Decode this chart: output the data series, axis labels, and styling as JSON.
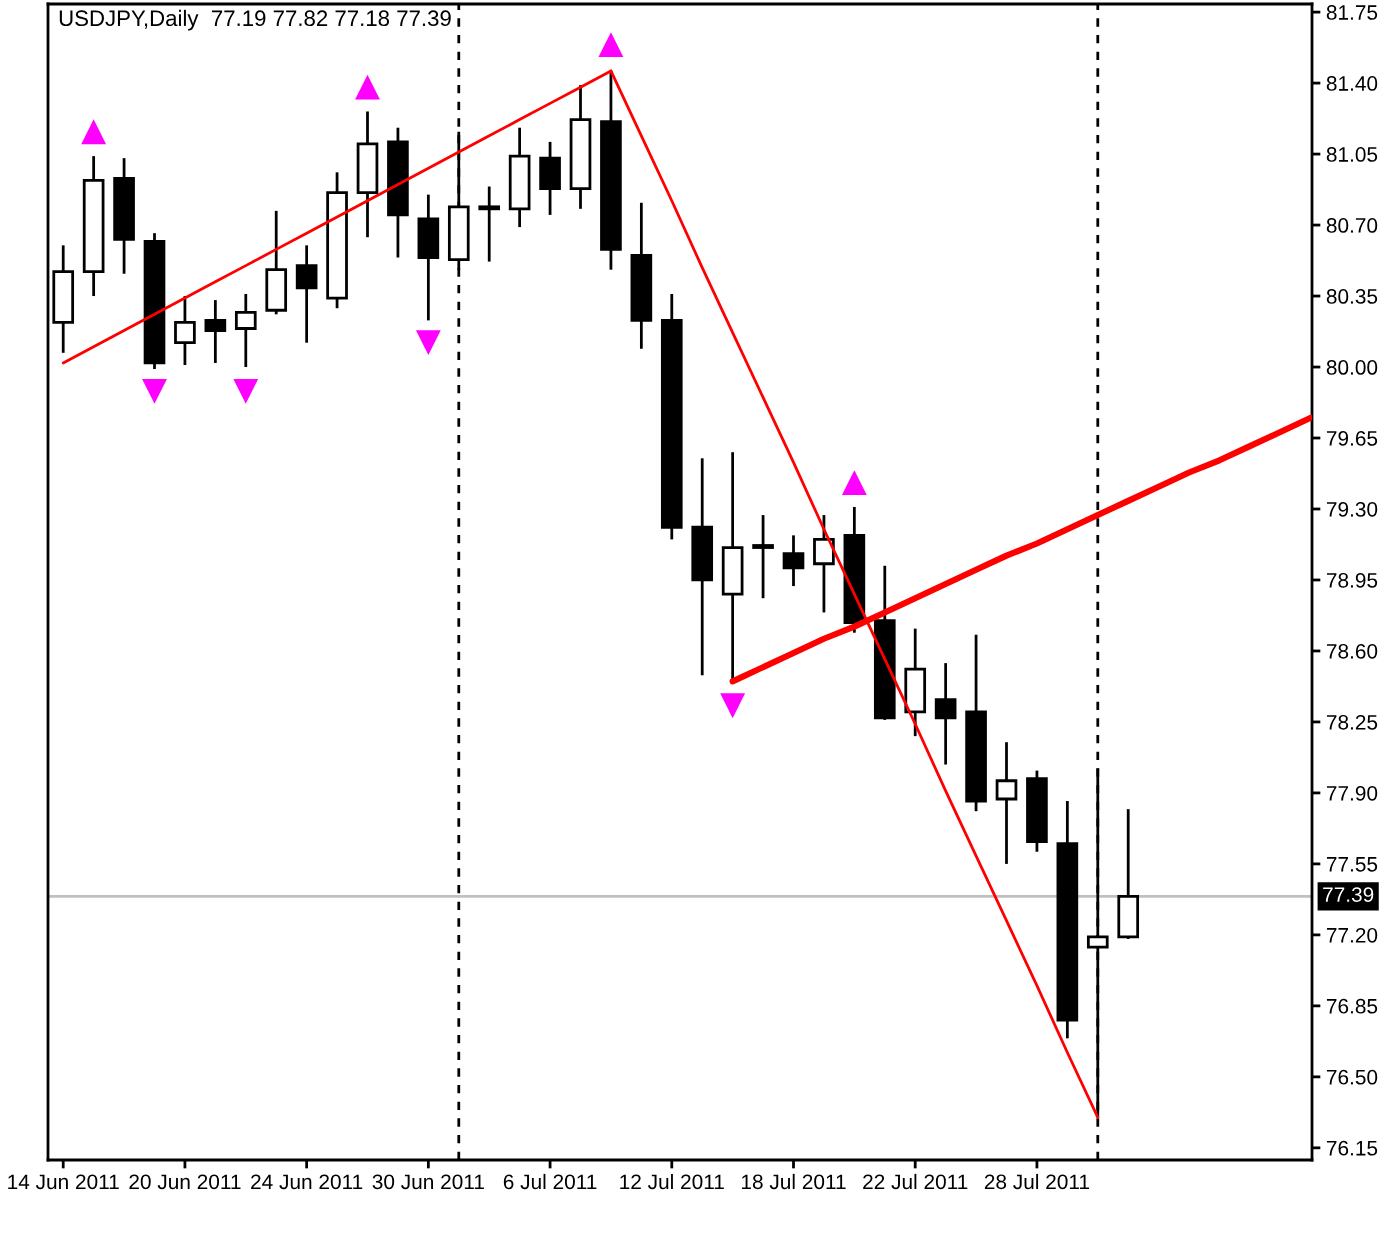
{
  "chart_data": {
    "type": "candlestick",
    "title": "USDJPY,Daily  77.19 77.82 77.18 77.39",
    "categories": [
      "14 Jun 2011",
      null,
      null,
      null,
      "20 Jun 2011",
      null,
      null,
      null,
      "24 Jun 2011",
      null,
      null,
      null,
      "30 Jun 2011",
      null,
      null,
      null,
      "6 Jul 2011",
      null,
      null,
      null,
      "12 Jul 2011",
      null,
      null,
      null,
      "18 Jul 2011",
      null,
      null,
      null,
      "22 Jul 2011",
      null,
      null,
      null,
      "28 Jul 2011",
      null,
      null,
      null,
      null,
      null,
      null,
      null,
      null,
      null
    ],
    "ohlc": [
      [
        80.22,
        80.6,
        80.07,
        80.47
      ],
      [
        80.47,
        81.04,
        80.35,
        80.92
      ],
      [
        80.93,
        81.03,
        80.46,
        80.63
      ],
      [
        80.62,
        80.66,
        79.99,
        80.02
      ],
      [
        80.12,
        80.35,
        80.01,
        80.22
      ],
      [
        80.23,
        80.33,
        80.02,
        80.18
      ],
      [
        80.19,
        80.36,
        80.0,
        80.27
      ],
      [
        80.28,
        80.77,
        80.26,
        80.48
      ],
      [
        80.5,
        80.6,
        80.12,
        80.39
      ],
      [
        80.34,
        80.96,
        80.29,
        80.86
      ],
      [
        80.86,
        81.26,
        80.64,
        81.1
      ],
      [
        81.11,
        81.18,
        80.54,
        80.75
      ],
      [
        80.73,
        80.85,
        80.23,
        80.54
      ],
      [
        80.53,
        81.16,
        80.48,
        80.79
      ],
      [
        80.79,
        80.89,
        80.52,
        80.78
      ],
      [
        80.78,
        81.18,
        80.69,
        81.04
      ],
      [
        81.03,
        81.11,
        80.75,
        80.88
      ],
      [
        80.88,
        81.39,
        80.78,
        81.22
      ],
      [
        81.21,
        81.46,
        80.48,
        80.58
      ],
      [
        80.55,
        80.81,
        80.09,
        80.23
      ],
      [
        80.23,
        80.36,
        79.15,
        79.21
      ],
      [
        79.21,
        79.55,
        78.48,
        78.95
      ],
      [
        78.88,
        79.58,
        78.45,
        79.11
      ],
      [
        79.12,
        79.27,
        78.86,
        79.11
      ],
      [
        79.08,
        79.17,
        78.92,
        79.01
      ],
      [
        79.03,
        79.27,
        78.79,
        79.15
      ],
      [
        79.17,
        79.31,
        78.69,
        78.74
      ],
      [
        78.75,
        79.02,
        78.26,
        78.27
      ],
      [
        78.3,
        78.71,
        78.18,
        78.51
      ],
      [
        78.36,
        78.54,
        78.04,
        78.27
      ],
      [
        78.3,
        78.68,
        77.81,
        77.86
      ],
      [
        77.87,
        78.15,
        77.55,
        77.96
      ],
      [
        77.97,
        78.01,
        77.61,
        77.66
      ],
      [
        77.65,
        77.86,
        76.69,
        76.78
      ],
      [
        77.14,
        78.02,
        76.3,
        77.19
      ],
      [
        77.19,
        77.82,
        77.18,
        77.39
      ],
      null,
      null,
      null,
      null,
      null,
      null
    ],
    "color": "#000000",
    "colors": [
      "#ffffff",
      "#ffffff",
      "#000000",
      "#000000",
      "#ffffff",
      "#000000",
      "#ffffff",
      "#ffffff",
      "#000000",
      "#ffffff",
      "#ffffff",
      "#000000",
      "#000000",
      "#ffffff",
      "#000000",
      "#ffffff",
      "#000000",
      "#ffffff",
      "#000000",
      "#000000",
      "#000000",
      "#000000",
      "#ffffff",
      "#000000",
      "#000000",
      "#ffffff",
      "#000000",
      "#000000",
      "#ffffff",
      "#000000",
      "#000000",
      "#ffffff",
      "#000000",
      "#000000",
      "#ffffff",
      "#ffffff",
      null,
      null,
      null,
      null,
      null,
      null
    ],
    "series": [
      {
        "type": "line",
        "color": "#ff0000",
        "values": [
          80.02,
          80.1,
          80.18,
          80.26,
          80.34,
          80.42,
          80.5,
          80.58,
          80.66,
          80.74,
          80.82,
          80.9,
          80.98,
          81.06,
          81.14,
          81.22,
          81.3,
          81.38,
          81.46,
          null,
          null,
          null,
          null,
          null,
          null,
          null,
          null,
          null,
          null,
          null,
          null,
          null,
          null,
          null,
          null,
          null,
          null,
          null,
          null,
          null,
          null,
          null
        ]
      },
      {
        "type": "line",
        "color": "#ff0000",
        "values": [
          null,
          null,
          null,
          null,
          null,
          null,
          null,
          null,
          null,
          null,
          null,
          null,
          null,
          null,
          null,
          null,
          null,
          null,
          81.46,
          81.14,
          80.82,
          80.49,
          80.17,
          79.85,
          79.53,
          79.2,
          78.88,
          78.56,
          78.24,
          77.91,
          77.59,
          77.27,
          76.95,
          76.62,
          76.3,
          null,
          null,
          null,
          null,
          null,
          null,
          null
        ]
      },
      {
        "type": "line",
        "color": "#ff0000",
        "values": [
          null,
          null,
          null,
          null,
          null,
          null,
          null,
          null,
          null,
          null,
          null,
          null,
          null,
          null,
          null,
          null,
          null,
          null,
          null,
          null,
          null,
          null,
          78.45,
          78.52,
          78.59,
          78.66,
          78.72,
          78.79,
          78.86,
          78.93,
          79.0,
          79.07,
          79.13,
          79.2,
          79.27,
          79.34,
          79.41,
          79.48,
          79.54,
          79.61,
          79.68,
          79.75
        ]
      },
      {
        "type": "scatter",
        "color": "#ff00ff",
        "marker": "triangle",
        "values": [
          null,
          81.16,
          null,
          null,
          null,
          null,
          null,
          null,
          null,
          null,
          81.38,
          null,
          null,
          null,
          null,
          null,
          null,
          null,
          81.59,
          null,
          null,
          null,
          null,
          null,
          null,
          null,
          79.43,
          null,
          null,
          null,
          null,
          null,
          null,
          null,
          null,
          null,
          null,
          null,
          null,
          null,
          null,
          null
        ]
      },
      {
        "type": "scatter",
        "color": "#ff00ff",
        "marker": "triangle_down",
        "values": [
          null,
          null,
          null,
          79.88,
          null,
          null,
          79.88,
          null,
          null,
          null,
          null,
          null,
          80.12,
          null,
          null,
          null,
          null,
          null,
          null,
          null,
          null,
          null,
          78.33,
          null,
          null,
          null,
          null,
          null,
          null,
          null,
          null,
          null,
          null,
          null,
          null,
          null,
          null,
          null,
          null,
          null,
          null,
          null
        ]
      }
    ],
    "ref_lines": [
      {
        "axis": "y",
        "value": 77.39,
        "label": "77.39",
        "color": "#c0c0c0"
      }
    ],
    "ylim": [
      76.09,
      81.79
    ],
    "yticks": [
      76.15,
      {
        "value": 76.5,
        "label": "76.50"
      },
      76.85,
      {
        "value": 77.2,
        "label": "77.20"
      },
      77.55,
      {
        "value": 77.9,
        "label": "77.90"
      },
      78.25,
      {
        "value": 78.6,
        "label": "78.60"
      },
      78.95,
      {
        "value": 79.3,
        "label": "79.30"
      },
      79.65,
      {
        "value": 80.0,
        "label": "80.00"
      },
      80.35,
      {
        "value": 80.7,
        "label": "80.70"
      },
      81.05,
      {
        "value": 81.4,
        "label": "81.40"
      },
      81.75
    ]
  }
}
